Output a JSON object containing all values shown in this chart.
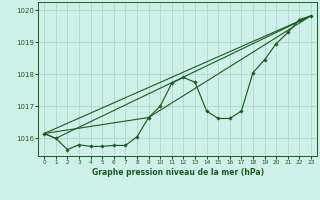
{
  "title": "Graphe pression niveau de la mer (hPa)",
  "background_color": "#cef0e8",
  "grid_color": "#aad8cc",
  "line_color": "#1a5c20",
  "xlim": [
    -0.5,
    23.5
  ],
  "ylim": [
    1015.45,
    1020.25
  ],
  "yticks": [
    1016,
    1017,
    1018,
    1019,
    1020
  ],
  "xticks": [
    0,
    1,
    2,
    3,
    4,
    5,
    6,
    7,
    8,
    9,
    10,
    11,
    12,
    13,
    14,
    15,
    16,
    17,
    18,
    19,
    20,
    21,
    22,
    23
  ],
  "series_main": {
    "x": [
      0,
      1,
      2,
      3,
      4,
      5,
      6,
      7,
      8,
      9,
      10,
      11,
      12,
      13,
      14,
      15,
      16,
      17,
      18,
      19,
      20,
      21,
      22,
      23
    ],
    "y": [
      1016.15,
      1016.0,
      1015.65,
      1015.8,
      1015.75,
      1015.75,
      1015.78,
      1015.78,
      1016.05,
      1016.65,
      1017.0,
      1017.72,
      1017.9,
      1017.75,
      1016.85,
      1016.62,
      1016.62,
      1016.85,
      1018.05,
      1018.45,
      1018.95,
      1019.3,
      1019.7,
      1019.82
    ]
  },
  "series_straight": {
    "x": [
      0,
      23
    ],
    "y": [
      1016.15,
      1019.82
    ]
  },
  "series_lower": {
    "x": [
      0,
      1,
      23
    ],
    "y": [
      1016.15,
      1016.0,
      1019.82
    ]
  },
  "series_middle": {
    "x": [
      0,
      9,
      23
    ],
    "y": [
      1016.15,
      1016.65,
      1019.82
    ]
  }
}
